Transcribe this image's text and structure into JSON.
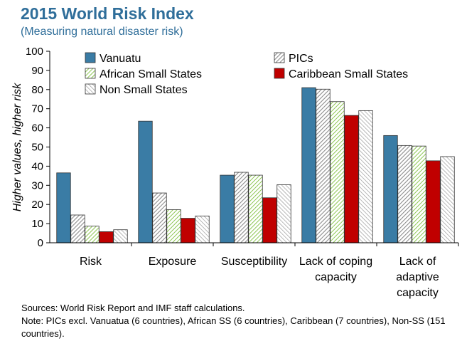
{
  "header": {
    "title": "2015 World Risk Index",
    "subtitle": "(Measuring natural disaster risk)"
  },
  "notes": {
    "sources": "Sources: World Risk Report and IMF staff calculations.",
    "note": "Note: PICs excl. Vanuatua (6 countries), African SS (6 countries), Caribbean (7 countries), Non-SS (151 countries)."
  },
  "colors": {
    "vanuatu": "#3a7ca5",
    "pics": "#bfbfbf",
    "african": "#8cc63f",
    "caribbean": "#c00000",
    "non_small": "#a6a6a6",
    "axis": "#000000"
  },
  "chart_data": {
    "type": "bar",
    "ylabel": "Higher values, higher risk",
    "ylim": [
      0,
      100
    ],
    "yticks": [
      "0",
      "10",
      "20",
      "30",
      "40",
      "50",
      "60",
      "70",
      "80",
      "90",
      "100"
    ],
    "categories": [
      [
        "Risk"
      ],
      [
        "Exposure"
      ],
      [
        "Susceptibility"
      ],
      [
        "Lack of coping",
        "capacity"
      ],
      [
        "Lack of",
        "adaptive",
        "capacity"
      ]
    ],
    "legend_placement": "top-left",
    "grid": false,
    "series": [
      {
        "name": "Vanuatu",
        "pattern": "solid-blue",
        "values": [
          36.5,
          63.5,
          35.3,
          81.0,
          56.0
        ]
      },
      {
        "name": "PICs",
        "pattern": "hatch-gray",
        "values": [
          14.5,
          26.0,
          36.8,
          80.2,
          50.8
        ]
      },
      {
        "name": "African Small States",
        "pattern": "hatch-green",
        "values": [
          8.7,
          17.3,
          35.3,
          73.7,
          50.5
        ]
      },
      {
        "name": "Caribbean Small States",
        "pattern": "solid-red",
        "values": [
          5.8,
          12.8,
          23.5,
          66.5,
          42.8
        ]
      },
      {
        "name": "Non Small States",
        "pattern": "hatch-gray-light",
        "values": [
          6.8,
          14.0,
          30.3,
          69.0,
          45.0
        ]
      }
    ]
  }
}
